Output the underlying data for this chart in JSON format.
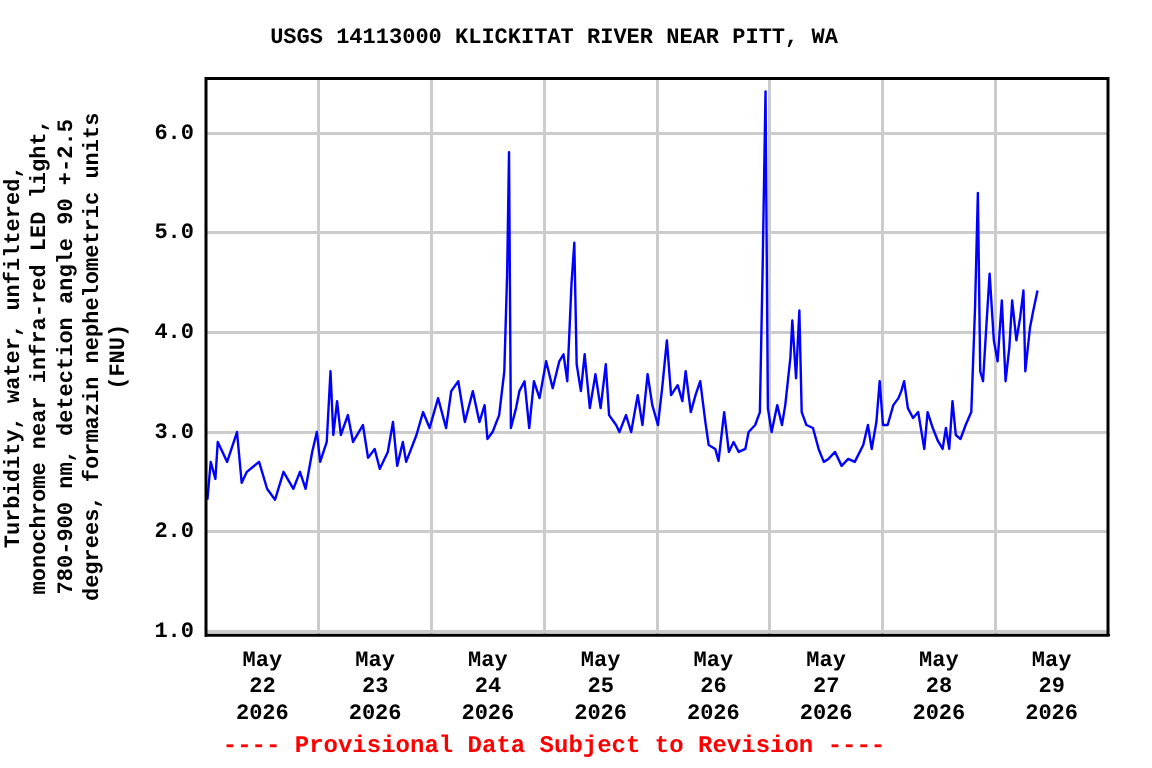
{
  "chart_data": {
    "type": "line",
    "title": "USGS 14113000 KLICKITAT RIVER NEAR PITT, WA",
    "ylabel": "Turbidity, water, unfiltered,\nmonochrome near infra-red LED light,\n780-900 nm, detection angle 90 +-2.5\ndegrees, formazin nephelometric units\n(FNU)",
    "annotations": [
      "---- Provisional Data Subject to Revision ----"
    ],
    "xlim": [
      "2026-05-22T00:00",
      "2026-05-30T00:00"
    ],
    "xticks": [
      {
        "value": "2026-05-22T12:00",
        "label": "May 22 2026"
      },
      {
        "value": "2026-05-23T00:00",
        "label": null
      },
      {
        "value": "2026-05-23T12:00",
        "label": "May 23 2026"
      },
      {
        "value": "2026-05-24T00:00",
        "label": null
      },
      {
        "value": "2026-05-24T12:00",
        "label": "May 24 2026"
      },
      {
        "value": "2026-05-25T00:00",
        "label": null
      },
      {
        "value": "2026-05-25T12:00",
        "label": "May 25 2026"
      },
      {
        "value": "2026-05-26T00:00",
        "label": null
      },
      {
        "value": "2026-05-26T12:00",
        "label": "May 26 2026"
      },
      {
        "value": "2026-05-27T00:00",
        "label": null
      },
      {
        "value": "2026-05-27T12:00",
        "label": "May 27 2026"
      },
      {
        "value": "2026-05-28T00:00",
        "label": null
      },
      {
        "value": "2026-05-28T12:00",
        "label": "May 28 2026"
      },
      {
        "value": "2026-05-29T00:00",
        "label": null
      },
      {
        "value": "2026-05-29T12:00",
        "label": "May 29 2026"
      }
    ],
    "ylim": [
      0.96,
      6.55
    ],
    "yticks": [
      {
        "value": 1,
        "label": "1.0"
      },
      {
        "value": 2,
        "label": "2.0"
      },
      {
        "value": 3,
        "label": "3.0"
      },
      {
        "value": 4,
        "label": "4.0"
      },
      {
        "value": 5,
        "label": "5.0"
      },
      {
        "value": 6,
        "label": "6.0"
      }
    ],
    "grid": true,
    "legend": false,
    "marker": "none",
    "line_style": "solid",
    "series": [
      {
        "color": "#0000ff",
        "x": [
          "2026-05-22T00:18",
          "2026-05-22T01:00",
          "2026-05-22T02:00",
          "2026-05-22T02:30",
          "2026-05-22T04:30",
          "2026-05-22T06:36",
          "2026-05-22T07:36",
          "2026-05-22T08:42",
          "2026-05-22T11:18",
          "2026-05-22T13:00",
          "2026-05-22T14:42",
          "2026-05-22T16:30",
          "2026-05-22T18:36",
          "2026-05-22T20:00",
          "2026-05-22T21:12",
          "2026-05-22T22:36",
          "2026-05-22T23:36",
          "2026-05-23T00:18",
          "2026-05-23T01:42",
          "2026-05-23T02:30",
          "2026-05-23T03:06",
          "2026-05-23T03:54",
          "2026-05-23T04:42",
          "2026-05-23T06:12",
          "2026-05-23T07:18",
          "2026-05-23T09:24",
          "2026-05-23T10:30",
          "2026-05-23T11:54",
          "2026-05-23T13:00",
          "2026-05-23T14:42",
          "2026-05-23T15:48",
          "2026-05-23T16:42",
          "2026-05-23T17:54",
          "2026-05-23T18:36",
          "2026-05-23T20:48",
          "2026-05-23T22:12",
          "2026-05-23T23:36",
          "2026-05-24T01:24",
          "2026-05-24T03:06",
          "2026-05-24T04:12",
          "2026-05-24T05:42",
          "2026-05-24T07:06",
          "2026-05-24T08:48",
          "2026-05-24T10:12",
          "2026-05-24T11:18",
          "2026-05-24T11:54",
          "2026-05-24T13:00",
          "2026-05-24T14:24",
          "2026-05-24T15:30",
          "2026-05-24T16:06",
          "2026-05-24T16:30",
          "2026-05-24T16:54",
          "2026-05-24T18:00",
          "2026-05-24T18:42",
          "2026-05-24T19:48",
          "2026-05-24T20:48",
          "2026-05-24T21:48",
          "2026-05-24T23:00",
          "2026-05-25T00:24",
          "2026-05-25T01:48",
          "2026-05-25T03:12",
          "2026-05-25T04:06",
          "2026-05-25T04:54",
          "2026-05-25T05:48",
          "2026-05-25T06:24",
          "2026-05-25T06:54",
          "2026-05-25T07:48",
          "2026-05-25T08:36",
          "2026-05-25T09:42",
          "2026-05-25T10:54",
          "2026-05-25T12:00",
          "2026-05-25T13:06",
          "2026-05-25T13:48",
          "2026-05-25T15:18",
          "2026-05-25T16:00",
          "2026-05-25T17:24",
          "2026-05-25T18:30",
          "2026-05-25T19:54",
          "2026-05-25T20:54",
          "2026-05-25T22:00",
          "2026-05-25T23:00",
          "2026-05-26T00:12",
          "2026-05-26T01:06",
          "2026-05-26T02:06",
          "2026-05-26T03:00",
          "2026-05-26T04:24",
          "2026-05-26T05:24",
          "2026-05-26T06:06",
          "2026-05-26T07:12",
          "2026-05-26T08:12",
          "2026-05-26T09:12",
          "2026-05-26T10:18",
          "2026-05-26T11:00",
          "2026-05-26T12:24",
          "2026-05-26T13:06",
          "2026-05-26T14:18",
          "2026-05-26T15:18",
          "2026-05-26T16:18",
          "2026-05-26T17:24",
          "2026-05-26T18:48",
          "2026-05-26T19:30",
          "2026-05-26T20:54",
          "2026-05-26T21:54",
          "2026-05-26T22:30",
          "2026-05-26T23:06",
          "2026-05-26T23:36",
          "2026-05-27T00:24",
          "2026-05-27T01:36",
          "2026-05-27T02:36",
          "2026-05-27T03:18",
          "2026-05-27T04:24",
          "2026-05-27T04:48",
          "2026-05-27T05:36",
          "2026-05-27T06:18",
          "2026-05-27T06:48",
          "2026-05-27T07:48",
          "2026-05-27T09:12",
          "2026-05-27T10:24",
          "2026-05-27T11:30",
          "2026-05-27T12:30",
          "2026-05-27T13:54",
          "2026-05-27T15:18",
          "2026-05-27T16:42",
          "2026-05-27T18:06",
          "2026-05-27T19:54",
          "2026-05-27T20:54",
          "2026-05-27T21:42",
          "2026-05-27T22:42",
          "2026-05-27T23:24",
          "2026-05-28T00:06",
          "2026-05-28T01:06",
          "2026-05-28T02:18",
          "2026-05-28T03:24",
          "2026-05-28T04:00",
          "2026-05-28T04:36",
          "2026-05-28T05:24",
          "2026-05-28T06:30",
          "2026-05-28T07:36",
          "2026-05-28T08:54",
          "2026-05-28T09:36",
          "2026-05-28T10:42",
          "2026-05-28T11:48",
          "2026-05-28T12:48",
          "2026-05-28T13:30",
          "2026-05-28T14:12",
          "2026-05-28T14:54",
          "2026-05-28T15:36",
          "2026-05-28T16:36",
          "2026-05-28T17:42",
          "2026-05-28T18:54",
          "2026-05-28T19:42",
          "2026-05-28T20:18",
          "2026-05-28T20:48",
          "2026-05-28T21:24",
          "2026-05-28T22:00",
          "2026-05-28T22:48",
          "2026-05-28T23:42",
          "2026-05-29T00:30",
          "2026-05-29T01:24",
          "2026-05-29T02:12",
          "2026-05-29T03:00",
          "2026-05-29T03:36",
          "2026-05-29T04:30",
          "2026-05-29T05:18",
          "2026-05-29T06:00",
          "2026-05-29T06:24",
          "2026-05-29T07:24",
          "2026-05-29T08:06",
          "2026-05-29T09:00"
        ],
        "values": [
          2.32,
          2.7,
          2.53,
          2.9,
          2.7,
          3.0,
          2.49,
          2.6,
          2.7,
          2.43,
          2.32,
          2.6,
          2.43,
          2.6,
          2.43,
          2.8,
          3.0,
          2.7,
          2.9,
          3.61,
          2.97,
          3.31,
          2.97,
          3.17,
          2.9,
          3.07,
          2.74,
          2.83,
          2.63,
          2.8,
          3.1,
          2.66,
          2.9,
          2.7,
          2.97,
          3.2,
          3.04,
          3.34,
          3.04,
          3.41,
          3.51,
          3.1,
          3.41,
          3.1,
          3.27,
          2.93,
          3.0,
          3.17,
          3.61,
          4.59,
          5.81,
          3.04,
          3.24,
          3.41,
          3.51,
          3.04,
          3.51,
          3.34,
          3.71,
          3.44,
          3.71,
          3.78,
          3.51,
          4.49,
          4.9,
          3.68,
          3.41,
          3.78,
          3.24,
          3.58,
          3.24,
          3.68,
          3.17,
          3.07,
          3.0,
          3.17,
          3.0,
          3.37,
          3.07,
          3.58,
          3.27,
          3.07,
          3.44,
          3.92,
          3.37,
          3.47,
          3.31,
          3.61,
          3.2,
          3.37,
          3.51,
          3.1,
          2.87,
          2.83,
          2.71,
          3.2,
          2.8,
          2.9,
          2.8,
          2.83,
          3.0,
          3.07,
          3.2,
          4.69,
          6.42,
          3.24,
          3.0,
          3.27,
          3.07,
          3.27,
          3.75,
          4.12,
          3.54,
          4.22,
          3.2,
          3.07,
          3.04,
          2.83,
          2.7,
          2.73,
          2.8,
          2.66,
          2.73,
          2.7,
          2.87,
          3.07,
          2.83,
          3.1,
          3.51,
          3.07,
          3.07,
          3.27,
          3.34,
          3.41,
          3.51,
          3.24,
          3.14,
          3.2,
          2.83,
          3.2,
          3.04,
          2.91,
          2.83,
          3.04,
          2.83,
          3.31,
          2.97,
          2.93,
          3.07,
          3.2,
          4.25,
          5.4,
          3.61,
          3.51,
          3.98,
          4.59,
          3.92,
          3.71,
          4.32,
          3.51,
          3.85,
          4.32,
          3.92,
          4.15,
          4.42,
          3.61,
          4.05,
          4.22,
          4.42
        ]
      }
    ]
  }
}
